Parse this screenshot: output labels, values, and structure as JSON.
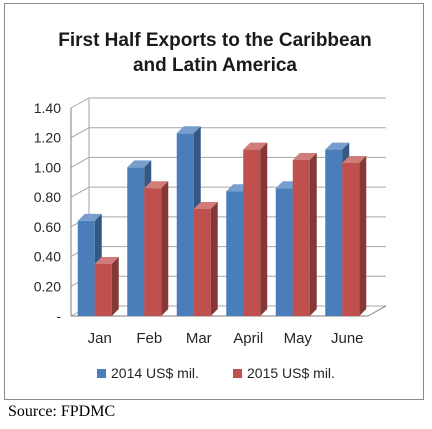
{
  "chart_data": {
    "type": "bar",
    "title_lines": [
      "First Half Exports to the Caribbean",
      "and Latin America"
    ],
    "categories": [
      "Jan",
      "Feb",
      "Mar",
      "April",
      "May",
      "June"
    ],
    "series": [
      {
        "name": "2014 US$ mil.",
        "values": [
          0.64,
          1.0,
          1.23,
          0.84,
          0.86,
          1.12
        ],
        "color": "#4a7ebb"
      },
      {
        "name": "2015 US$ mil.",
        "values": [
          0.35,
          0.86,
          0.72,
          1.12,
          1.05,
          1.03
        ],
        "color": "#c0504d"
      }
    ],
    "y_ticks": [
      "-",
      "0.20",
      "0.40",
      "0.60",
      "0.80",
      "1.00",
      "1.20",
      "1.40"
    ],
    "ylim": [
      0,
      1.4
    ],
    "grid": true,
    "legend_position": "bottom",
    "style": "3d-clustered-column"
  },
  "source": "Source: FPDMC"
}
